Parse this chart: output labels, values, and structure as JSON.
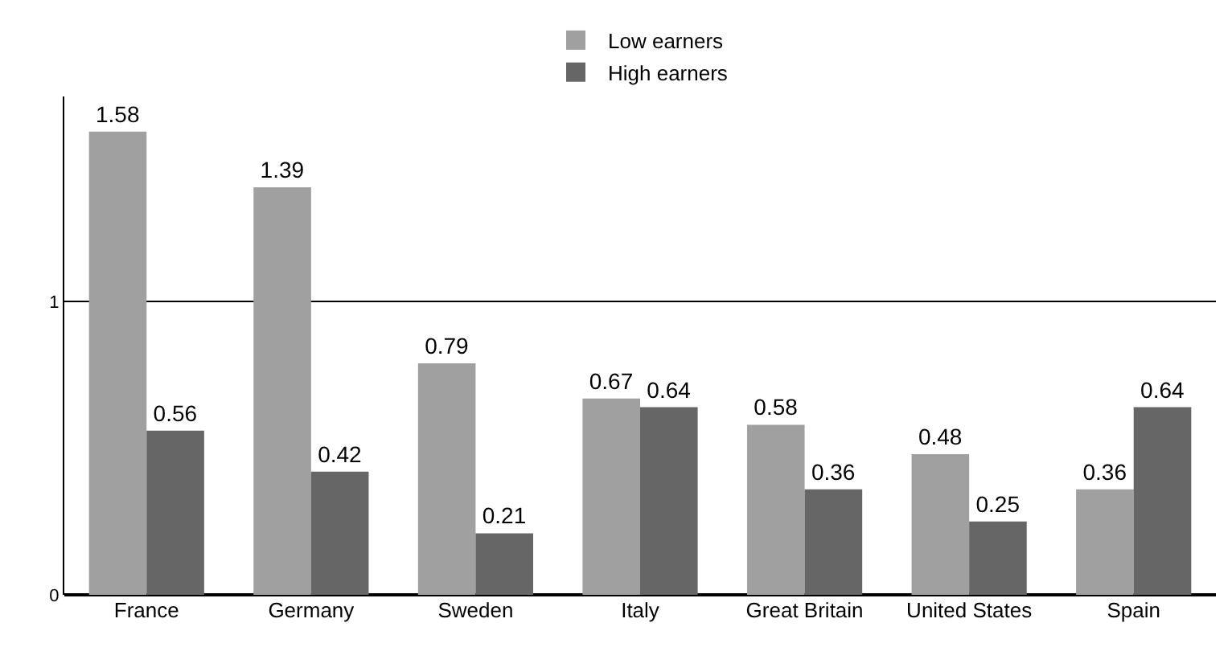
{
  "chart_data": {
    "type": "bar",
    "categories": [
      "France",
      "Germany",
      "Sweden",
      "Italy",
      "Great Britain",
      "United States",
      "Spain"
    ],
    "series": [
      {
        "name": "Low earners",
        "color": "#a0a0a0",
        "values": [
          1.58,
          1.39,
          0.79,
          0.67,
          0.58,
          0.48,
          0.36
        ]
      },
      {
        "name": "High earners",
        "color": "#666666",
        "values": [
          0.56,
          0.42,
          0.21,
          0.64,
          0.36,
          0.25,
          0.64
        ]
      }
    ],
    "ylim": [
      0,
      1.7
    ],
    "yticks": [
      0,
      1
    ],
    "grid": "y",
    "legend": "top",
    "data_labels": true
  }
}
